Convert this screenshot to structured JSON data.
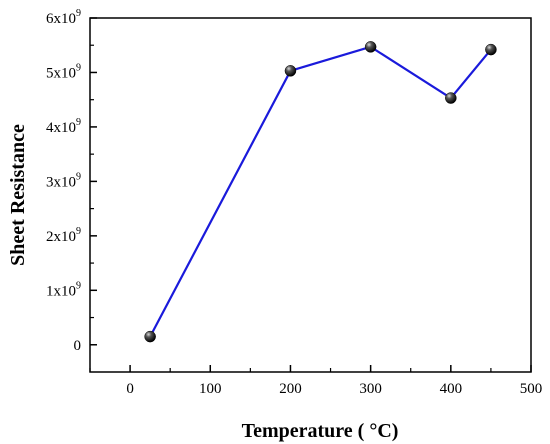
{
  "chart_data": {
    "type": "line",
    "xlabel": "Temperature ( °C)",
    "ylabel": "Sheet Resistance",
    "xlim": [
      -50,
      500
    ],
    "ylim": [
      -500000000,
      6000000000
    ],
    "x_ticks": [
      0,
      100,
      200,
      300,
      400,
      500
    ],
    "x_tick_labels": [
      "0",
      "100",
      "200",
      "300",
      "400",
      "500"
    ],
    "y_ticks": [
      0,
      1000000000,
      2000000000,
      3000000000,
      4000000000,
      5000000000,
      6000000000
    ],
    "y_tick_labels": [
      {
        "base": "0",
        "exp": ""
      },
      {
        "base": "1x10",
        "exp": "9"
      },
      {
        "base": "2x10",
        "exp": "9"
      },
      {
        "base": "3x10",
        "exp": "9"
      },
      {
        "base": "4x10",
        "exp": "9"
      },
      {
        "base": "5x10",
        "exp": "9"
      },
      {
        "base": "6x10",
        "exp": "9"
      }
    ],
    "grid": false,
    "series": [
      {
        "x": [
          25,
          200,
          300,
          400,
          450
        ],
        "values": [
          150000000,
          5030000000,
          5470000000,
          4530000000,
          5420000000
        ],
        "line_color": "#1a1adb",
        "marker_color": "#000000"
      }
    ]
  }
}
